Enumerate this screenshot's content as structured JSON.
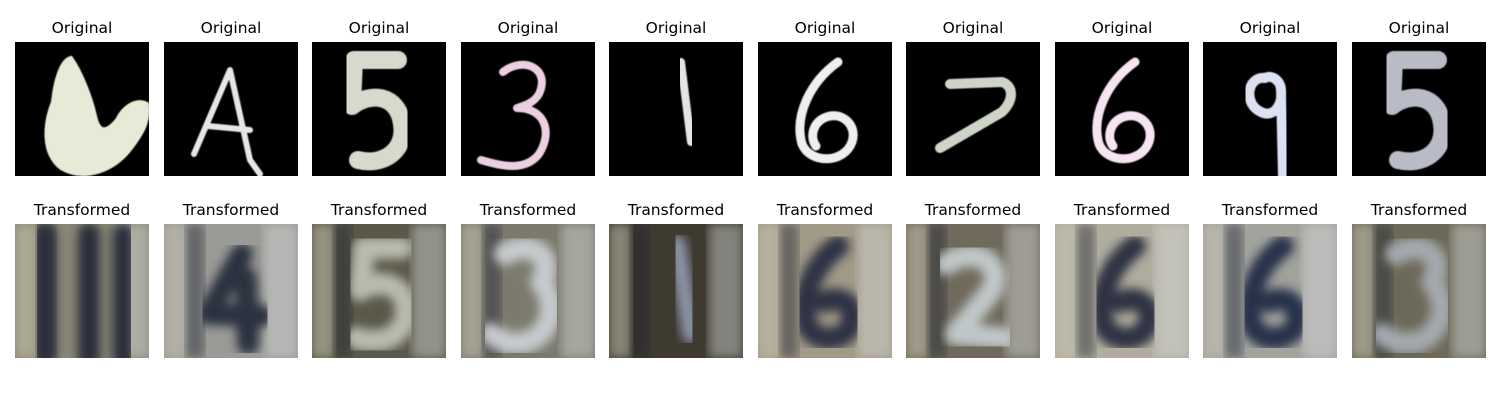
{
  "rows": [
    {
      "label": "Original",
      "tiles": [
        {
          "glyph": "U-blob",
          "background": "#000000",
          "ink": "#e8ead8"
        },
        {
          "glyph": "A",
          "background": "#000000",
          "ink": "#e6e6e6"
        },
        {
          "glyph": "5",
          "background": "#000000",
          "ink": "#d8d8cc"
        },
        {
          "glyph": "3",
          "background": "#000000",
          "ink": "#eccfe0"
        },
        {
          "glyph": "1",
          "background": "#000000",
          "ink": "#e4e4e4"
        },
        {
          "glyph": "6",
          "background": "#000000",
          "ink": "#efefef"
        },
        {
          "glyph": "7",
          "background": "#000000",
          "ink": "#cfd4c8"
        },
        {
          "glyph": "6",
          "background": "#000000",
          "ink": "#f6e4f0"
        },
        {
          "glyph": "9",
          "background": "#000000",
          "ink": "#dde0f0"
        },
        {
          "glyph": "5",
          "background": "#000000",
          "ink": "#b9bbc6"
        }
      ]
    },
    {
      "label": "Transformed",
      "tiles": [
        {
          "glyph": "blur-stripes",
          "background": "#8a8776",
          "ink": "#2c2f3a"
        },
        {
          "glyph": "blur-4",
          "background": "#9a9a96",
          "ink": "#2a3040"
        },
        {
          "glyph": "blur-5",
          "background": "#5a5848",
          "ink": "#b8bcae"
        },
        {
          "glyph": "blur-3",
          "background": "#7c7a6e",
          "ink": "#c6cacd"
        },
        {
          "glyph": "blur-1",
          "background": "#3e3a30",
          "ink": "#8b93a6"
        },
        {
          "glyph": "blur-6",
          "background": "#a19a86",
          "ink": "#2e3344"
        },
        {
          "glyph": "blur-2",
          "background": "#6f6a5c",
          "ink": "#c0c7c8"
        },
        {
          "glyph": "blur-6",
          "background": "#b0ad9e",
          "ink": "#2d3242"
        },
        {
          "glyph": "blur-6",
          "background": "#a3a39e",
          "ink": "#27304a"
        },
        {
          "glyph": "blur-3",
          "background": "#6d6958",
          "ink": "#a4a9ae"
        }
      ]
    }
  ]
}
